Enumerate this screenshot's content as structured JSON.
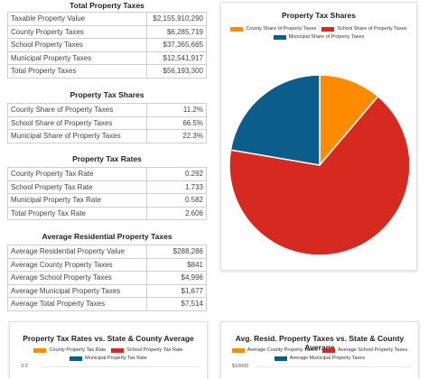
{
  "total_taxes": {
    "title": "Total Property Taxes",
    "rows": [
      {
        "label": "Taxable Property Value",
        "value": "$2,155,910,290"
      },
      {
        "label": "County Property Taxes",
        "value": "$6,285,719"
      },
      {
        "label": "School Property Taxes",
        "value": "$37,365,665"
      },
      {
        "label": "Municipal Property Taxes",
        "value": "$12,541,917"
      },
      {
        "label": "Total Property Taxes",
        "value": "$56,193,300"
      }
    ]
  },
  "shares": {
    "title": "Property Tax Shares",
    "rows": [
      {
        "label": "County Share of Property Taxes",
        "value": "11.2%"
      },
      {
        "label": "School Share of Property Taxes",
        "value": "66.5%"
      },
      {
        "label": "Municipal Share of Property Taxes",
        "value": "22.3%"
      }
    ]
  },
  "rates": {
    "title": "Property Tax Rates",
    "rows": [
      {
        "label": "County Property Tax Rate",
        "value": "0.292"
      },
      {
        "label": "School Property Tax Rate",
        "value": "1.733"
      },
      {
        "label": "Municipal Property Tax Rate",
        "value": "0.582"
      },
      {
        "label": "Total Property Tax Rate",
        "value": "2.606"
      }
    ]
  },
  "residential": {
    "title": "Average Residential Property Taxes",
    "rows": [
      {
        "label": "Average Residential Property Value",
        "value": "$288,286"
      },
      {
        "label": "Average County Property Taxes",
        "value": "$841"
      },
      {
        "label": "Average School Property Taxes",
        "value": "$4,996"
      },
      {
        "label": "Average Municipal Property Taxes",
        "value": "$1,677"
      },
      {
        "label": "Average Total Property Taxes",
        "value": "$7,514"
      }
    ]
  },
  "colors": {
    "county": "#ff8c00",
    "school": "#d62a20",
    "municipal": "#0b5d8c"
  },
  "chart_data": [
    {
      "type": "pie",
      "title": "Property Tax Shares",
      "legend_placement": "top",
      "series": [
        {
          "name": "County Share of Property Taxes",
          "value": 11.2,
          "color": "#ff8c00"
        },
        {
          "name": "School Share of Property Taxes",
          "value": 66.5,
          "color": "#d62a20"
        },
        {
          "name": "Municipal Share of Property Taxes",
          "value": 22.3,
          "color": "#0b5d8c"
        }
      ]
    },
    {
      "type": "bar",
      "title": "Property Tax Rates vs. State & County Average",
      "legend_placement": "top",
      "series": [
        {
          "name": "County Property Tax Rate",
          "color": "#ff8c00"
        },
        {
          "name": "School Property Tax Rate",
          "color": "#d62a20"
        },
        {
          "name": "Municipal Property Tax Rate",
          "color": "#0b5d8c"
        }
      ],
      "yticks": [
        "3.0"
      ]
    },
    {
      "type": "bar",
      "title": "Avg. Resid. Property Taxes vs. State & County Average",
      "legend_placement": "top",
      "series": [
        {
          "name": "Average County Property Taxes",
          "color": "#ff8c00"
        },
        {
          "name": "Average School Property Taxes",
          "color": "#d62a20"
        },
        {
          "name": "Average Municipal Property Taxes",
          "color": "#0b5d8c"
        }
      ],
      "yticks": [
        "$10000"
      ]
    }
  ]
}
